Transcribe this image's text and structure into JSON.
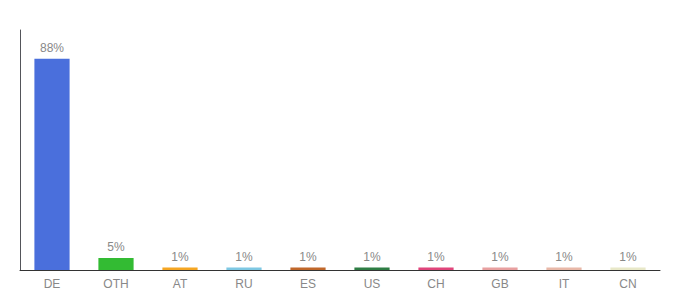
{
  "chart_data": {
    "type": "bar",
    "categories": [
      "DE",
      "OTH",
      "AT",
      "RU",
      "ES",
      "US",
      "CH",
      "GB",
      "IT",
      "CN"
    ],
    "values": [
      88,
      5,
      1,
      1,
      1,
      1,
      1,
      1,
      1,
      1
    ],
    "value_labels": [
      "88%",
      "5%",
      "1%",
      "1%",
      "1%",
      "1%",
      "1%",
      "1%",
      "1%",
      "1%"
    ],
    "data_labels": true,
    "colors": [
      "#4a6fdc",
      "#33bb33",
      "#f5a623",
      "#7ec8e3",
      "#c0672a",
      "#2e7d44",
      "#e0457b",
      "#e8a0a0",
      "#e8b8a8",
      "#e8e8c8"
    ],
    "ylim": [
      0,
      100
    ],
    "tick_labels": "x",
    "grid": false
  }
}
